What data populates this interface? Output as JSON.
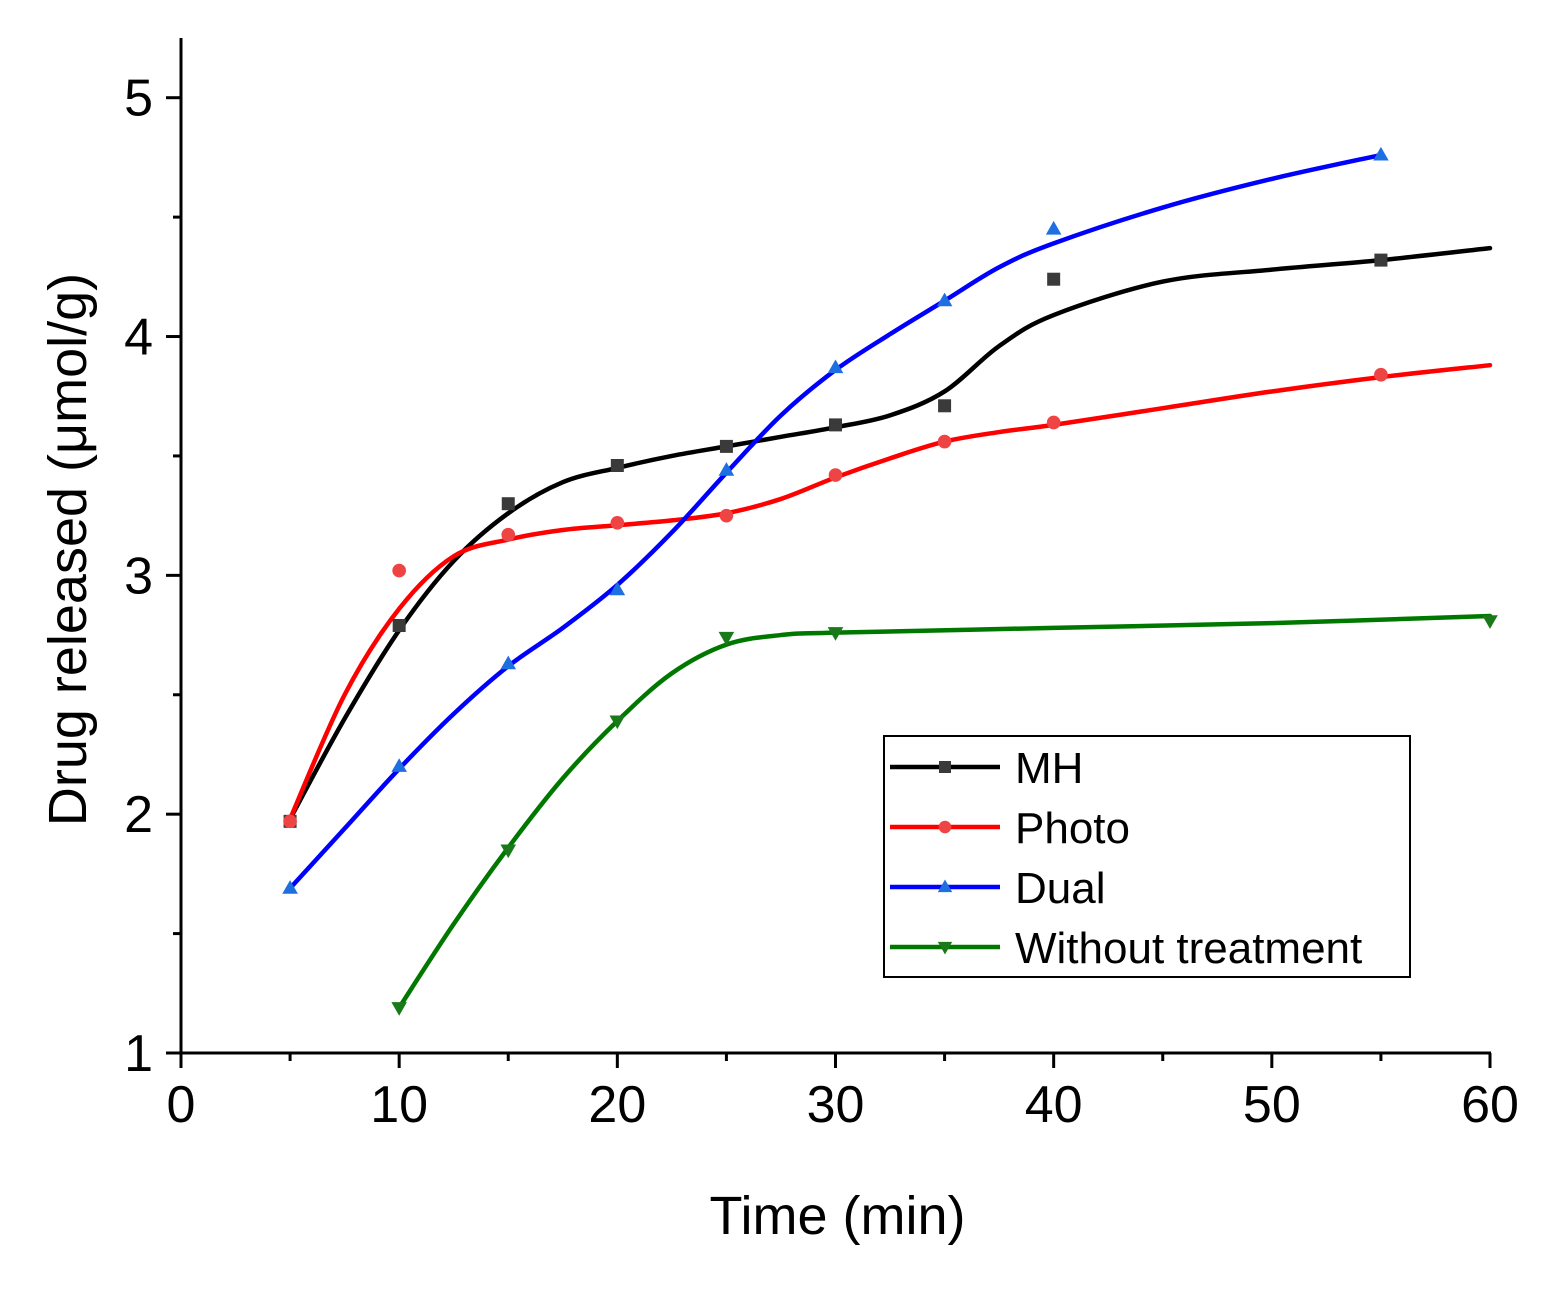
{
  "chart_data": {
    "type": "line",
    "title": "",
    "xlabel": "Time (min)",
    "ylabel": "Drug released (μmol/g)",
    "xlim": [
      0,
      60
    ],
    "ylim": [
      1,
      5.25
    ],
    "xticks": [
      0,
      10,
      20,
      30,
      40,
      50,
      60
    ],
    "xtick_labels": [
      "0",
      "10",
      "20",
      "30",
      "40",
      "50",
      "60"
    ],
    "yticks": [
      1,
      2,
      3,
      4,
      5
    ],
    "ytick_labels": [
      "1",
      "2",
      "3",
      "4",
      "5"
    ],
    "grid": false,
    "legend_position": "bottom-right",
    "series": [
      {
        "name": "MH",
        "marker": "square",
        "line_color": "#000000",
        "marker_color": "#3a3a3a",
        "x": [
          5,
          10,
          15,
          20,
          25,
          30,
          35,
          40,
          55
        ],
        "y": [
          1.97,
          2.79,
          3.3,
          3.46,
          3.54,
          3.63,
          3.71,
          4.24,
          4.32
        ],
        "curve_x": [
          5,
          7.5,
          10,
          12.5,
          15,
          17.5,
          20,
          22.5,
          25,
          27.5,
          30,
          32.5,
          35,
          37.5,
          40,
          45,
          50,
          55,
          60
        ],
        "curve_y": [
          1.98,
          2.4,
          2.77,
          3.06,
          3.26,
          3.39,
          3.45,
          3.5,
          3.54,
          3.58,
          3.62,
          3.67,
          3.77,
          3.96,
          4.09,
          4.23,
          4.28,
          4.32,
          4.37
        ]
      },
      {
        "name": "Photo",
        "marker": "circle",
        "line_color": "#ff0000",
        "marker_color": "#ef4444",
        "x": [
          5,
          10,
          15,
          20,
          25,
          30,
          35,
          40,
          55
        ],
        "y": [
          1.97,
          3.02,
          3.17,
          3.22,
          3.25,
          3.42,
          3.56,
          3.64,
          3.84
        ],
        "curve_x": [
          5,
          7.5,
          10,
          12.5,
          15,
          17.5,
          20,
          22.5,
          25,
          27.5,
          30,
          32.5,
          35,
          37.5,
          40,
          45,
          50,
          55,
          60
        ],
        "curve_y": [
          1.98,
          2.5,
          2.86,
          3.08,
          3.15,
          3.19,
          3.21,
          3.23,
          3.26,
          3.32,
          3.41,
          3.49,
          3.56,
          3.6,
          3.63,
          3.7,
          3.77,
          3.83,
          3.88
        ]
      },
      {
        "name": "Dual",
        "marker": "triangle-up",
        "line_color": "#0000ff",
        "marker_color": "#1e6fe0",
        "x": [
          5,
          10,
          15,
          20,
          25,
          30,
          35,
          40,
          55
        ],
        "y": [
          1.69,
          2.2,
          2.63,
          2.94,
          3.44,
          3.87,
          4.15,
          4.45,
          4.76
        ],
        "curve_x": [
          5,
          7.5,
          10,
          12.5,
          15,
          17.5,
          20,
          22.5,
          25,
          27.5,
          30,
          32.5,
          35,
          37.5,
          40,
          45,
          50,
          55
        ],
        "curve_y": [
          1.69,
          1.94,
          2.19,
          2.42,
          2.62,
          2.78,
          2.96,
          3.18,
          3.43,
          3.67,
          3.86,
          4.01,
          4.15,
          4.29,
          4.39,
          4.54,
          4.66,
          4.76
        ]
      },
      {
        "name": "Without treatment",
        "marker": "triangle-down",
        "line_color": "#007800",
        "marker_color": "#1a7a1a",
        "x": [
          10,
          15,
          20,
          25,
          30,
          60
        ],
        "y": [
          1.19,
          1.85,
          2.39,
          2.74,
          2.76,
          2.81
        ],
        "curve_x": [
          10,
          12.5,
          15,
          17.5,
          20,
          22.5,
          25,
          27.5,
          30,
          40,
          50,
          60
        ],
        "curve_y": [
          1.19,
          1.54,
          1.86,
          2.15,
          2.39,
          2.59,
          2.71,
          2.75,
          2.76,
          2.78,
          2.8,
          2.83
        ]
      }
    ]
  }
}
